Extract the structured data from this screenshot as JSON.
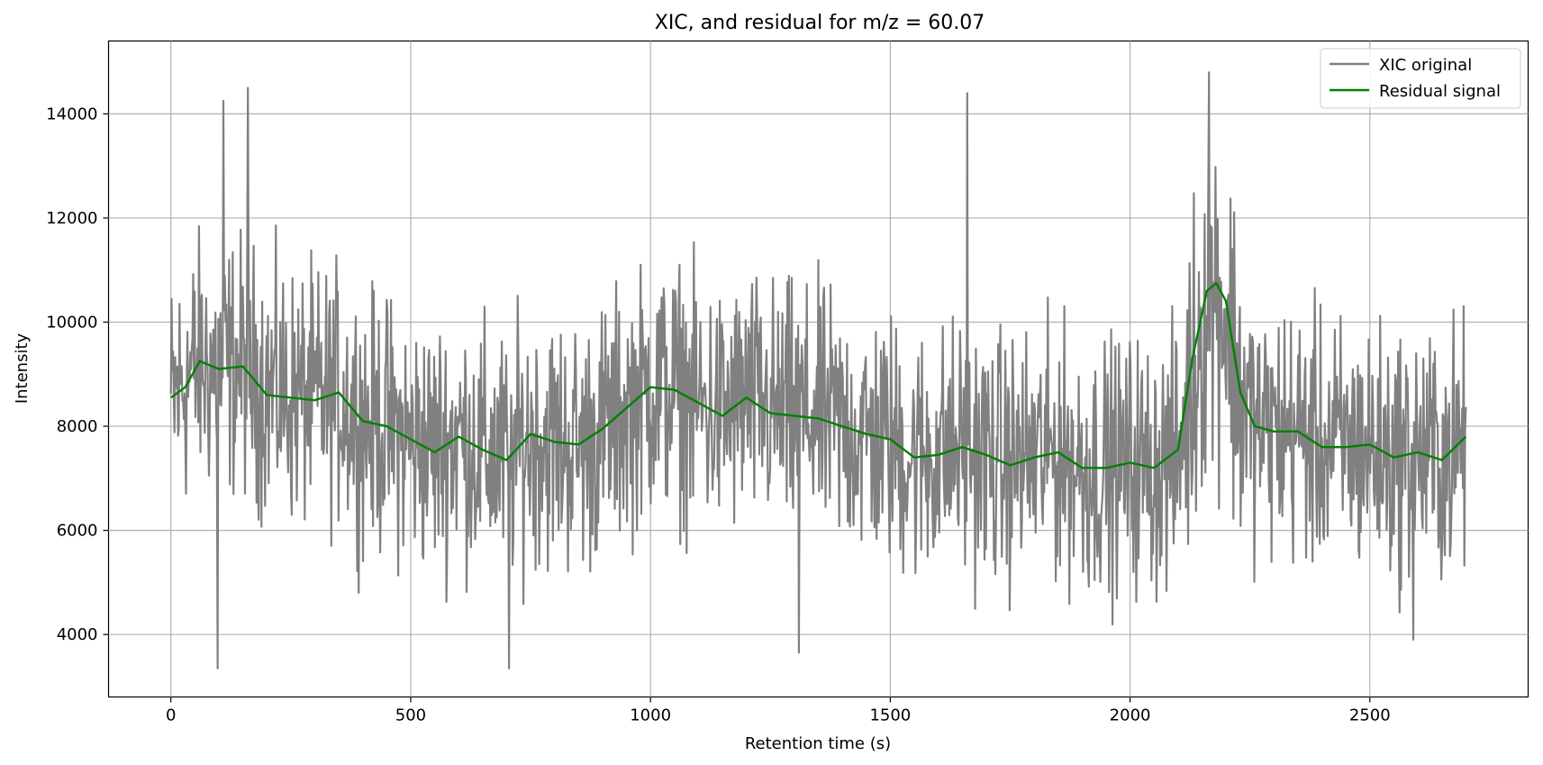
{
  "chart_data": {
    "type": "line",
    "title": "XIC, and residual for m/z = 60.07",
    "xlabel": "Retention time (s)",
    "ylabel": "Intensity",
    "xlim": [
      -130,
      2830
    ],
    "ylim": [
      2800,
      15400
    ],
    "xticks": [
      0,
      500,
      1000,
      1500,
      2000,
      2500
    ],
    "yticks": [
      4000,
      6000,
      8000,
      10000,
      12000,
      14000
    ],
    "grid": true,
    "legend_position": "top-right",
    "series": [
      {
        "name": "XIC original",
        "color": "#808080",
        "noisy": true,
        "x": [
          0,
          30,
          60,
          100,
          150,
          200,
          250,
          300,
          350,
          400,
          450,
          500,
          550,
          600,
          650,
          700,
          750,
          800,
          850,
          900,
          950,
          1000,
          1050,
          1100,
          1150,
          1200,
          1250,
          1300,
          1350,
          1400,
          1450,
          1500,
          1550,
          1600,
          1650,
          1700,
          1750,
          1800,
          1850,
          1900,
          1950,
          2000,
          2050,
          2100,
          2130,
          2160,
          2180,
          2200,
          2230,
          2260,
          2300,
          2350,
          2400,
          2450,
          2500,
          2550,
          2600,
          2650,
          2700
        ],
        "y": [
          8400,
          8900,
          9200,
          9100,
          9200,
          8700,
          8600,
          8500,
          8600,
          8100,
          8000,
          7700,
          7600,
          7800,
          7500,
          7400,
          7800,
          7700,
          7600,
          7900,
          8300,
          8700,
          8700,
          8400,
          8200,
          8500,
          8300,
          8200,
          8200,
          8000,
          7800,
          7700,
          7400,
          7500,
          7600,
          7400,
          7300,
          7400,
          7500,
          7200,
          7200,
          7300,
          7200,
          7400,
          9000,
          10500,
          10600,
          10200,
          8600,
          8000,
          7900,
          7900,
          7600,
          7600,
          7600,
          7400,
          7500,
          7400,
          7700
        ],
        "spikes": [
          {
            "x": 97,
            "y": 3350
          },
          {
            "x": 110,
            "y": 14250
          },
          {
            "x": 160,
            "y": 14500
          },
          {
            "x": 705,
            "y": 3350
          },
          {
            "x": 1310,
            "y": 3650
          },
          {
            "x": 1660,
            "y": 14400
          },
          {
            "x": 2165,
            "y": 14800
          },
          {
            "x": 2590,
            "y": 3900
          }
        ]
      },
      {
        "name": "Residual signal",
        "color": "#008000",
        "x": [
          0,
          30,
          60,
          100,
          150,
          200,
          250,
          300,
          350,
          400,
          450,
          500,
          550,
          600,
          650,
          700,
          750,
          800,
          850,
          900,
          950,
          1000,
          1050,
          1100,
          1150,
          1200,
          1250,
          1300,
          1350,
          1400,
          1450,
          1500,
          1550,
          1600,
          1650,
          1700,
          1750,
          1800,
          1850,
          1900,
          1950,
          2000,
          2050,
          2100,
          2130,
          2160,
          2180,
          2200,
          2230,
          2260,
          2300,
          2350,
          2400,
          2450,
          2500,
          2550,
          2600,
          2650,
          2700
        ],
        "y": [
          8550,
          8750,
          9250,
          9100,
          9150,
          8600,
          8550,
          8500,
          8650,
          8100,
          8000,
          7750,
          7500,
          7800,
          7550,
          7350,
          7850,
          7700,
          7650,
          7950,
          8350,
          8750,
          8700,
          8450,
          8200,
          8550,
          8250,
          8200,
          8150,
          8000,
          7850,
          7750,
          7400,
          7450,
          7600,
          7450,
          7250,
          7400,
          7500,
          7200,
          7200,
          7300,
          7200,
          7550,
          9300,
          10600,
          10750,
          10400,
          8650,
          8000,
          7900,
          7900,
          7600,
          7600,
          7650,
          7400,
          7500,
          7350,
          7800
        ]
      }
    ]
  }
}
